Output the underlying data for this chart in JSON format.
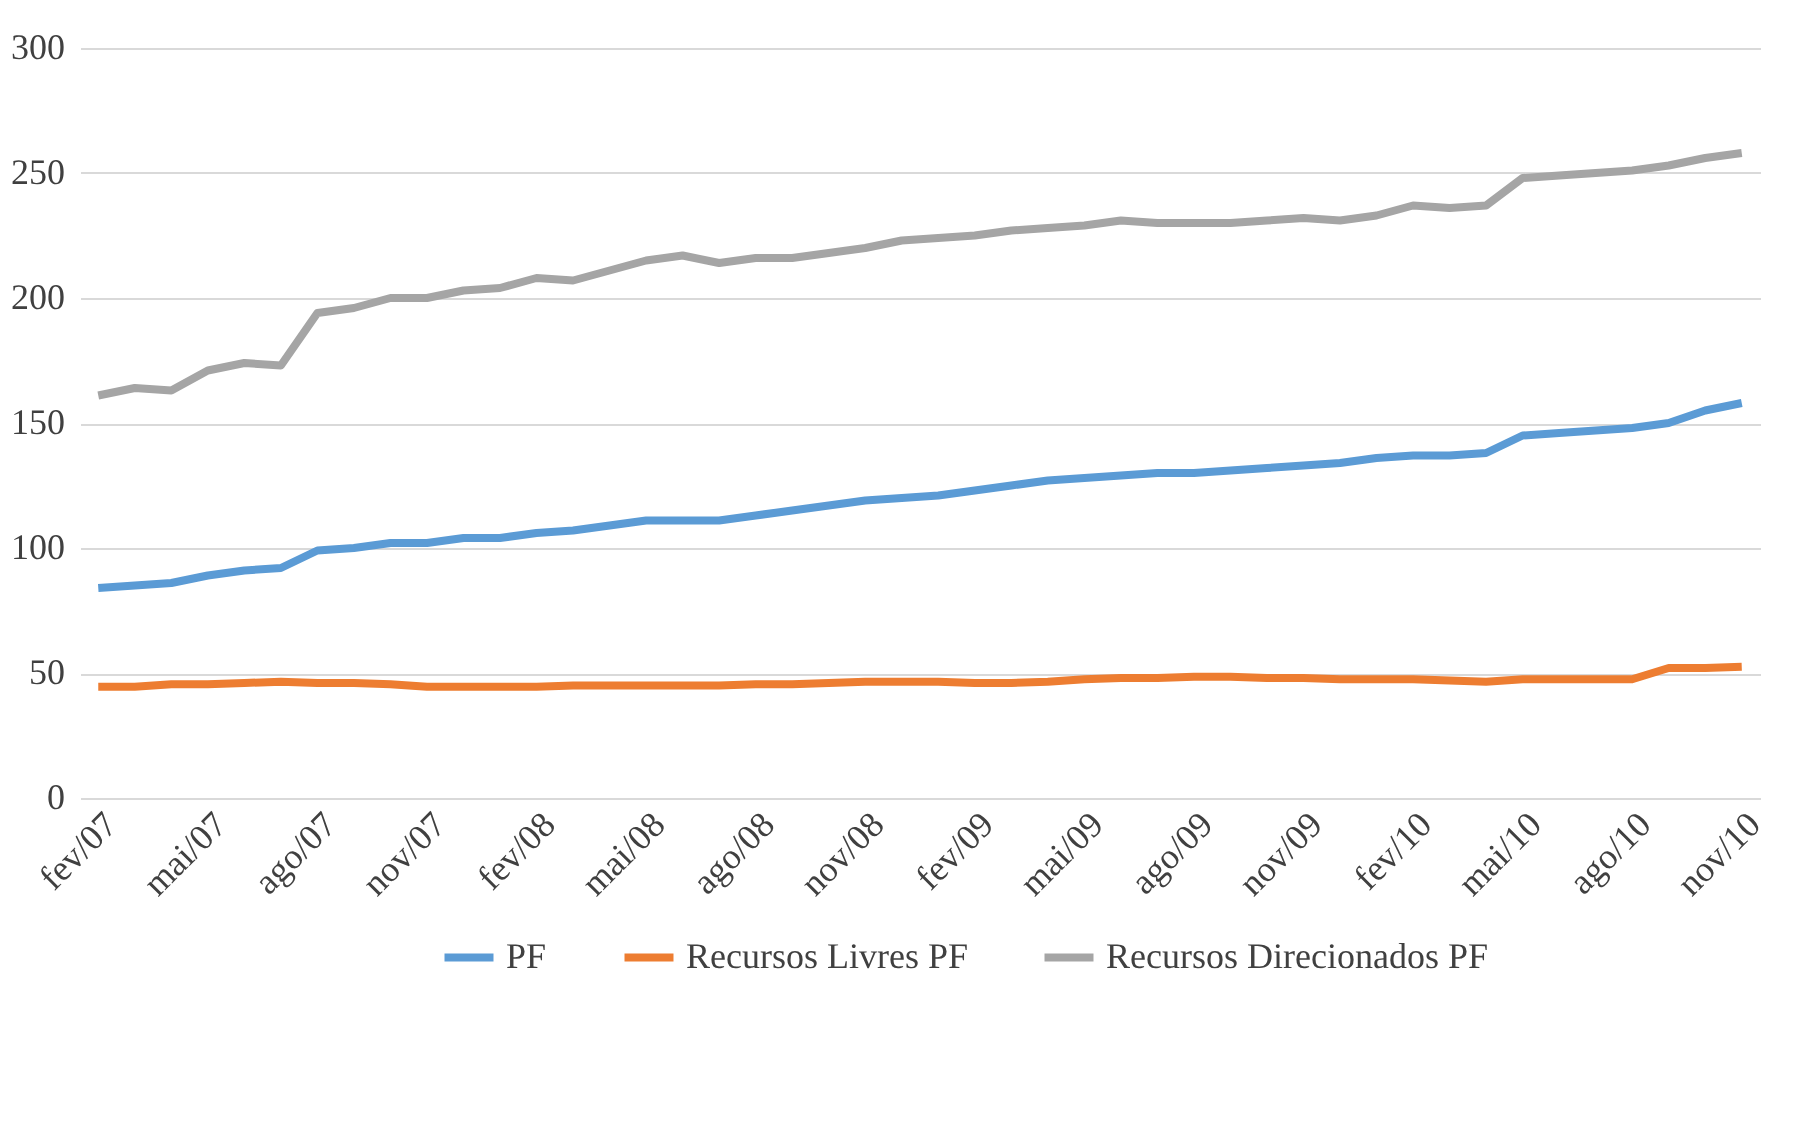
{
  "chart_data": {
    "type": "line",
    "categories": [
      "fev/07",
      null,
      null,
      "mai/07",
      null,
      null,
      "ago/07",
      null,
      null,
      "nov/07",
      null,
      null,
      "fev/08",
      null,
      null,
      "mai/08",
      null,
      null,
      "ago/08",
      null,
      null,
      "nov/08",
      null,
      null,
      "fev/09",
      null,
      null,
      "mai/09",
      null,
      null,
      "ago/09",
      null,
      null,
      "nov/09",
      null,
      null,
      "fev/10",
      null,
      null,
      "mai/10",
      null,
      null,
      "ago/10",
      null,
      null,
      "nov/10"
    ],
    "series": [
      {
        "name": "PF",
        "color": "#5b9bd5",
        "values": [
          84,
          85,
          86,
          89,
          91,
          92,
          99,
          100,
          102,
          102,
          104,
          104,
          106,
          107,
          109,
          111,
          111,
          111,
          113,
          115,
          117,
          119,
          120,
          121,
          123,
          125,
          127,
          128,
          129,
          130,
          130,
          131,
          132,
          133,
          134,
          136,
          137,
          137,
          138,
          145,
          146,
          147,
          148,
          150,
          155,
          158
        ]
      },
      {
        "name": "Recursos Livres PF",
        "color": "#ed7d31",
        "values": [
          44.5,
          44.5,
          45.5,
          45.5,
          46,
          46.5,
          46,
          46,
          45.5,
          44.5,
          44.5,
          44.5,
          44.5,
          45,
          45,
          45,
          45,
          45,
          45.5,
          45.5,
          46,
          46.5,
          46.5,
          46.5,
          46,
          46,
          46.5,
          47.5,
          48,
          48,
          48.5,
          48.5,
          48,
          48,
          47.5,
          47.5,
          47.5,
          47,
          46.5,
          47.5,
          47.5,
          47.5,
          47.5,
          52,
          52,
          52.5
        ]
      },
      {
        "name": "Recursos Direcionados PF",
        "color": "#a5a5a5",
        "values": [
          161,
          164,
          163,
          171,
          174,
          173,
          194,
          196,
          200,
          200,
          203,
          204,
          208,
          207,
          211,
          215,
          217,
          214,
          216,
          216,
          218,
          220,
          223,
          224,
          225,
          227,
          228,
          229,
          231,
          230,
          230,
          230,
          231,
          232,
          231,
          233,
          237,
          236,
          237,
          248,
          249,
          250,
          251,
          253,
          256,
          258
        ]
      }
    ],
    "ylim": [
      0,
      300
    ],
    "yticks": [
      0,
      50,
      100,
      150,
      200,
      250,
      300
    ],
    "grid": "y",
    "legend": "bottom",
    "line_style": "solid",
    "marker": "none"
  }
}
